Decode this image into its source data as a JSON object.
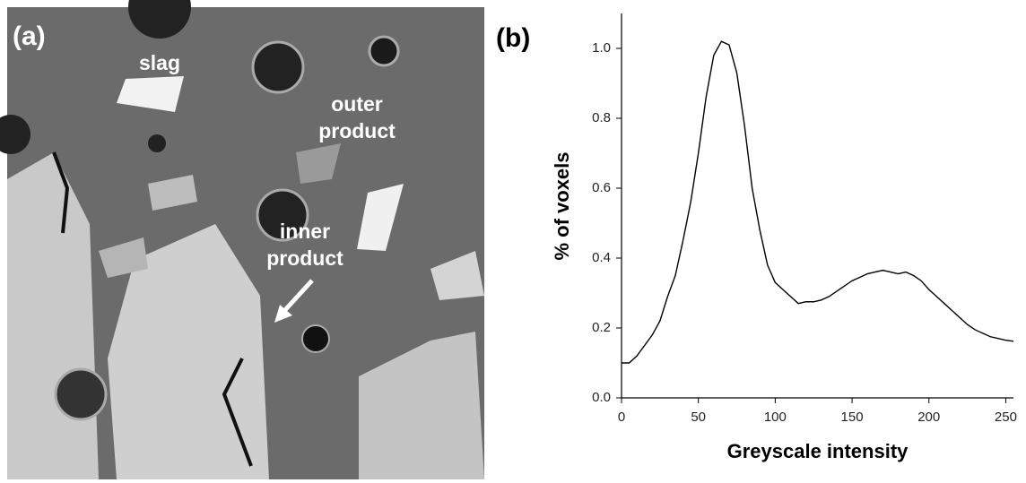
{
  "panel_a": {
    "label": "(a)",
    "annotations": [
      {
        "lines": [
          "slag"
        ]
      },
      {
        "lines": [
          "outer",
          "product"
        ]
      },
      {
        "lines": [
          "inner",
          "product"
        ]
      }
    ]
  },
  "chart_data": {
    "type": "line",
    "panel_label": "(b)",
    "x_label": "Greyscale intensity",
    "y_label": "% of voxels",
    "x": [
      0,
      5,
      10,
      15,
      20,
      25,
      30,
      35,
      40,
      45,
      50,
      55,
      60,
      65,
      70,
      75,
      80,
      85,
      90,
      95,
      100,
      105,
      110,
      115,
      120,
      125,
      130,
      135,
      140,
      145,
      150,
      155,
      160,
      165,
      170,
      175,
      180,
      185,
      190,
      195,
      200,
      205,
      210,
      215,
      220,
      225,
      230,
      235,
      240,
      245,
      250,
      255
    ],
    "series": [
      {
        "color": "#000000",
        "values": [
          0.1,
          0.1,
          0.12,
          0.15,
          0.18,
          0.22,
          0.29,
          0.35,
          0.45,
          0.56,
          0.7,
          0.86,
          0.98,
          1.02,
          1.01,
          0.93,
          0.78,
          0.6,
          0.48,
          0.38,
          0.33,
          0.31,
          0.29,
          0.27,
          0.275,
          0.275,
          0.28,
          0.29,
          0.305,
          0.32,
          0.335,
          0.345,
          0.355,
          0.36,
          0.365,
          0.36,
          0.355,
          0.36,
          0.35,
          0.335,
          0.31,
          0.29,
          0.27,
          0.25,
          0.23,
          0.21,
          0.195,
          0.185,
          0.175,
          0.17,
          0.165,
          0.162
        ]
      }
    ],
    "xlim": [
      0,
      255
    ],
    "xticks": [
      0,
      50,
      100,
      150,
      200,
      250
    ],
    "ylim": [
      0,
      1.1
    ],
    "yticks": [
      {
        "value": 0,
        "label": "0.0"
      },
      0.2,
      0.4,
      0.6,
      0.8,
      {
        "value": 1,
        "label": "1.0"
      }
    ]
  }
}
